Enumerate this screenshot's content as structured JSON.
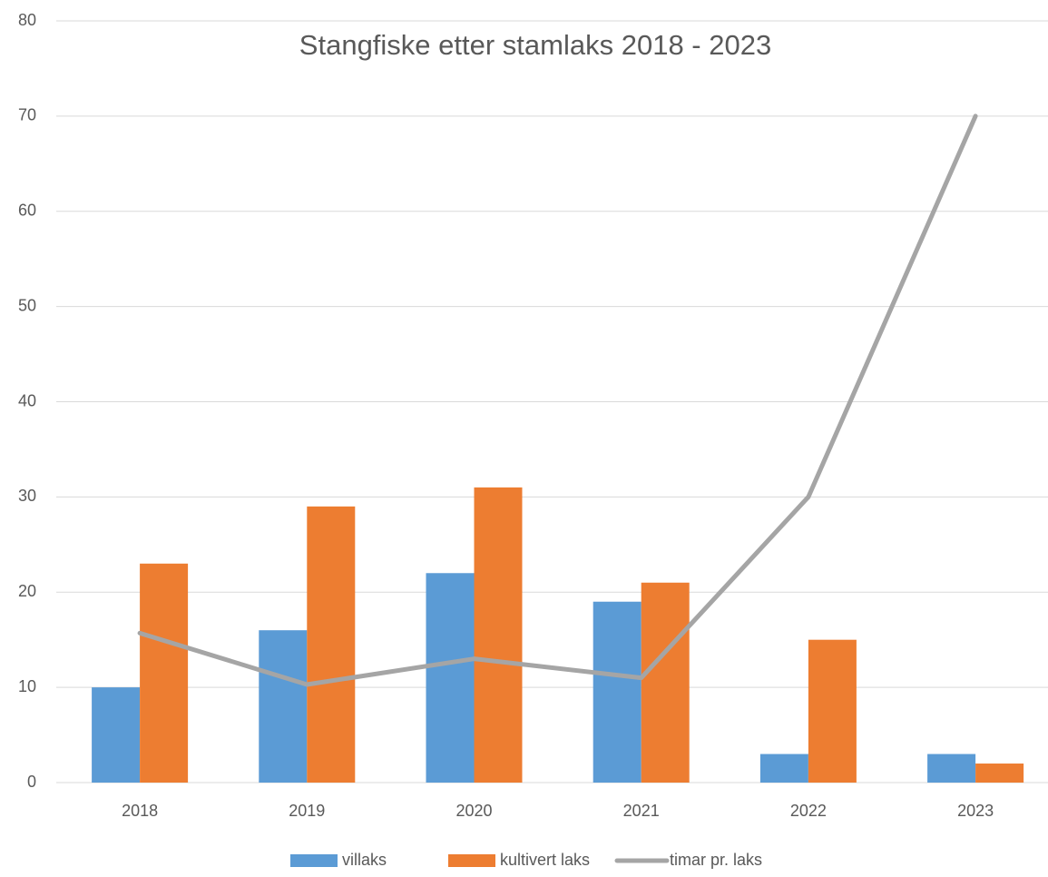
{
  "chart_data": {
    "type": "bar",
    "title": "Stangfiske etter stamlaks 2018 - 2023",
    "categories": [
      "2018",
      "2019",
      "2020",
      "2021",
      "2022",
      "2023"
    ],
    "series": [
      {
        "name": "villaks",
        "color": "#5b9bd5",
        "type": "bar",
        "values": [
          10,
          16,
          22,
          19,
          3,
          3
        ]
      },
      {
        "name": "kultivert laks",
        "color": "#ed7d31",
        "type": "bar",
        "values": [
          23,
          29,
          31,
          21,
          15,
          2
        ]
      },
      {
        "name": "timar pr. laks",
        "color": "#a5a5a5",
        "type": "line",
        "values": [
          15.7,
          10.3,
          13,
          11,
          30,
          70
        ]
      }
    ],
    "ylim": [
      0,
      80
    ],
    "yticks": [
      0,
      10,
      20,
      30,
      40,
      50,
      60,
      70,
      80
    ],
    "grid": true,
    "legend": "bottom"
  }
}
